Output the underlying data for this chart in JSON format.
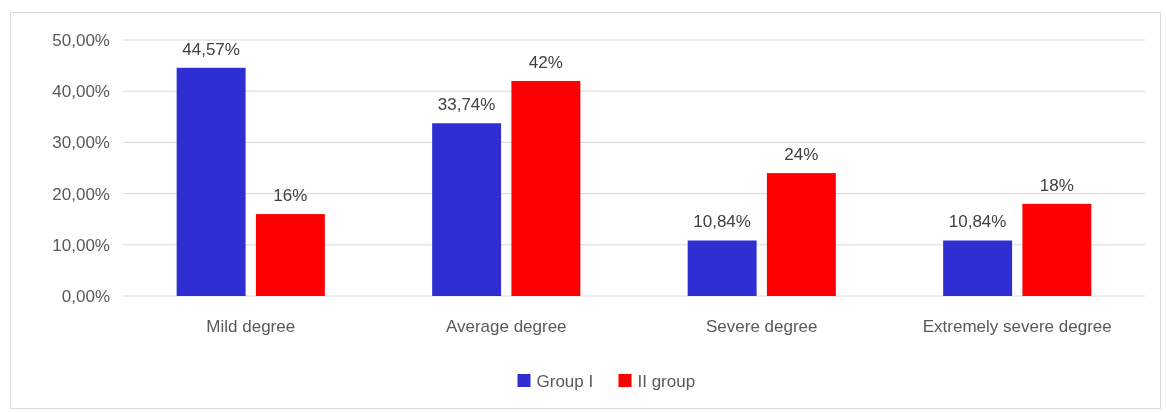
{
  "chart_data": {
    "type": "bar",
    "categories": [
      "Mild degree",
      "Average degree",
      "Severe degree",
      "Extremely severe degree"
    ],
    "series": [
      {
        "name": "Group I",
        "color": "#2e2ed2",
        "values": [
          44.57,
          33.74,
          10.84,
          10.84
        ],
        "value_labels": [
          "44,57%",
          "33,74%",
          "10,84%",
          "10,84%"
        ]
      },
      {
        "name": "II group",
        "color": "#ff0000",
        "values": [
          16,
          42,
          24,
          18
        ],
        "value_labels": [
          "16%",
          "42%",
          "24%",
          "18%"
        ]
      }
    ],
    "ylim": [
      0,
      50
    ],
    "yticks": [
      {
        "value": 0,
        "label": "0,00%"
      },
      {
        "value": 10,
        "label": "10,00%"
      },
      {
        "value": 20,
        "label": "20,00%"
      },
      {
        "value": 30,
        "label": "30,00%"
      },
      {
        "value": 40,
        "label": "40,00%"
      },
      {
        "value": 50,
        "label": "50,00%"
      }
    ],
    "grid": "y",
    "legend": "bottom"
  }
}
